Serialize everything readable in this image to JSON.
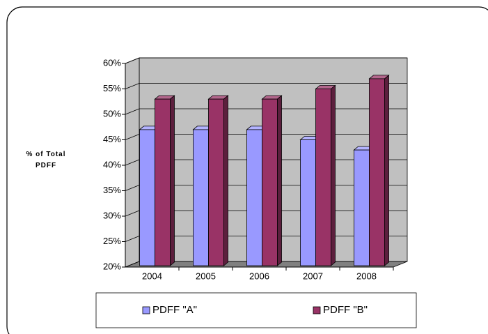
{
  "chart_data": {
    "type": "bar3d",
    "y_label": "% of Total PDFF",
    "categories": [
      "2004",
      "2005",
      "2006",
      "2007",
      "2008"
    ],
    "series": [
      {
        "name": "PDFF \"A\"",
        "color": "#9999ff",
        "values": [
          47,
          47,
          47,
          45,
          43
        ]
      },
      {
        "name": "PDFF \"B\"",
        "color": "#993366",
        "values": [
          53,
          53,
          53,
          55,
          57
        ]
      }
    ],
    "ylim": [
      20,
      60
    ],
    "yticks": [
      {
        "value": 20,
        "label": "20%"
      },
      {
        "value": 25,
        "label": "25%"
      },
      {
        "value": 30,
        "label": "30%"
      },
      {
        "value": 35,
        "label": "35%"
      },
      {
        "value": 40,
        "label": "40%"
      },
      {
        "value": 45,
        "label": "45%"
      },
      {
        "value": 50,
        "label": "50%"
      },
      {
        "value": 55,
        "label": "55%"
      },
      {
        "value": 60,
        "label": "60%"
      }
    ],
    "grid": true,
    "legend": "bottom"
  }
}
